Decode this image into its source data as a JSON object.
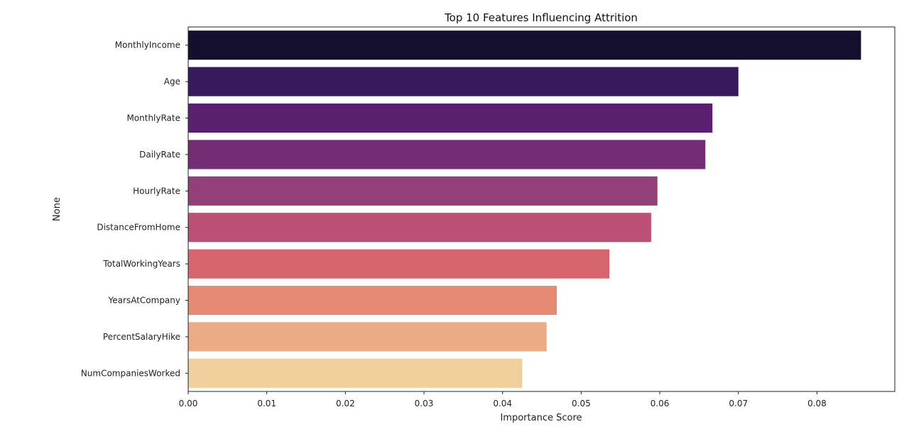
{
  "chart_data": {
    "type": "bar",
    "orientation": "horizontal",
    "title": "Top 10 Features Influencing Attrition",
    "xlabel": "Importance Score",
    "ylabel": "None",
    "categories": [
      "MonthlyIncome",
      "Age",
      "MonthlyRate",
      "DailyRate",
      "HourlyRate",
      "DistanceFromHome",
      "TotalWorkingYears",
      "YearsAtCompany",
      "PercentSalaryHike",
      "NumCompaniesWorked"
    ],
    "values": [
      0.0856,
      0.07,
      0.0667,
      0.0658,
      0.0597,
      0.0589,
      0.0536,
      0.0469,
      0.0456,
      0.0425
    ],
    "colors": [
      "#140e2f",
      "#361a5d",
      "#58206f",
      "#742d75",
      "#933f79",
      "#bb4f75",
      "#d7656d",
      "#e68a73",
      "#ebab84",
      "#f0d09d"
    ],
    "xlim": [
      0,
      0.0899
    ],
    "xticks": [
      "0.00",
      "0.01",
      "0.02",
      "0.03",
      "0.04",
      "0.05",
      "0.06",
      "0.07",
      "0.08"
    ],
    "grid": false,
    "legend": "none"
  }
}
